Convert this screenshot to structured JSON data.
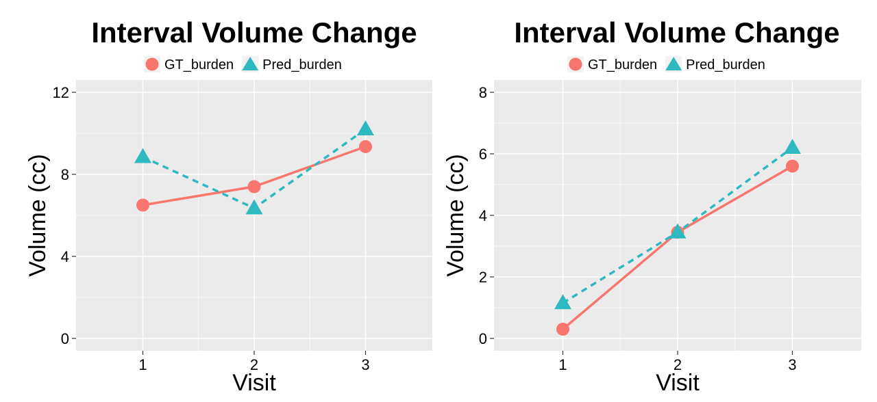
{
  "chart_data": [
    {
      "type": "line",
      "title": "Interval Volume Change",
      "xlabel": "Visit",
      "ylabel": "Volume (cc)",
      "x": [
        1,
        2,
        3
      ],
      "xlim": [
        0.4,
        3.6
      ],
      "ylim": [
        -0.6,
        12.6
      ],
      "yticks": [
        0,
        4,
        8,
        12
      ],
      "grid": true,
      "legend_position": "top",
      "series": [
        {
          "name": "GT_burden",
          "values": [
            6.5,
            7.4,
            9.35
          ],
          "color": "#F8766D",
          "marker": "circle",
          "line": "solid"
        },
        {
          "name": "Pred_burden",
          "values": [
            8.85,
            6.35,
            10.2
          ],
          "color": "#2EB9C0",
          "marker": "triangle",
          "line": "dashed"
        }
      ]
    },
    {
      "type": "line",
      "title": "Interval Volume Change",
      "xlabel": "Visit",
      "ylabel": "Volume (cc)",
      "x": [
        1,
        2,
        3
      ],
      "xlim": [
        0.4,
        3.6
      ],
      "ylim": [
        -0.4,
        8.4
      ],
      "yticks": [
        0,
        2,
        4,
        6,
        8
      ],
      "grid": true,
      "legend_position": "top",
      "series": [
        {
          "name": "GT_burden",
          "values": [
            0.3,
            3.45,
            5.6
          ],
          "color": "#F8766D",
          "marker": "circle",
          "line": "solid"
        },
        {
          "name": "Pred_burden",
          "values": [
            1.15,
            3.45,
            6.2
          ],
          "color": "#2EB9C0",
          "marker": "triangle",
          "line": "dashed"
        }
      ]
    }
  ]
}
